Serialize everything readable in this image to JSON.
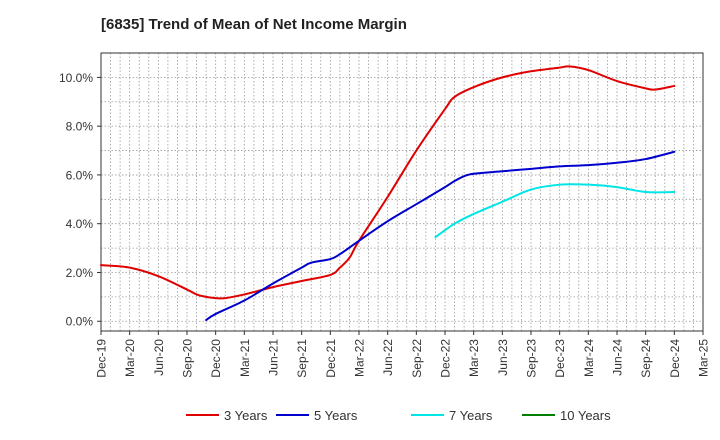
{
  "chart_data": {
    "type": "line",
    "title": "[6835]  Trend of Mean of Net Income Margin",
    "xlabel": "",
    "ylabel": "",
    "x_ticks": [
      "Dec-19",
      "Mar-20",
      "Jun-20",
      "Sep-20",
      "Dec-20",
      "Mar-21",
      "Jun-21",
      "Sep-21",
      "Dec-21",
      "Mar-22",
      "Jun-22",
      "Sep-22",
      "Dec-22",
      "Mar-23",
      "Jun-23",
      "Sep-23",
      "Dec-23",
      "Mar-24",
      "Jun-24",
      "Sep-24",
      "Dec-24",
      "Mar-25"
    ],
    "y_ticks": [
      "0.0%",
      "2.0%",
      "4.0%",
      "6.0%",
      "8.0%",
      "10.0%"
    ],
    "ylim": [
      -0.4,
      11.0
    ],
    "grid": true,
    "legend_position": "bottom",
    "series": [
      {
        "name": "3 Years",
        "color": "#e00000",
        "x": [
          "Dec-19",
          "Mar-20",
          "Jun-20",
          "Sep-20",
          "Oct-20",
          "Nov-20",
          "Dec-20",
          "Jan-21",
          "Mar-21",
          "Jun-21",
          "Sep-21",
          "Dec-21",
          "Jan-22",
          "Feb-22",
          "Mar-22",
          "Jun-22",
          "Sep-22",
          "Dec-22",
          "Jan-23",
          "Mar-23",
          "Jun-23",
          "Sep-23",
          "Dec-23",
          "Jan-24",
          "Mar-24",
          "Jun-24",
          "Sep-24",
          "Oct-24",
          "Dec-24"
        ],
        "values": [
          2.3,
          2.2,
          1.85,
          1.3,
          1.1,
          1.0,
          0.95,
          0.95,
          1.1,
          1.4,
          1.65,
          1.9,
          2.2,
          2.6,
          3.3,
          5.1,
          7.0,
          8.7,
          9.2,
          9.6,
          10.0,
          10.25,
          10.4,
          10.45,
          10.3,
          9.85,
          9.55,
          9.5,
          9.65
        ]
      },
      {
        "name": "5 Years",
        "color": "#0000cc",
        "x": [
          "Nov-20",
          "Dec-20",
          "Mar-21",
          "Jun-21",
          "Sep-21",
          "Oct-21",
          "Dec-21",
          "Jan-22",
          "Mar-22",
          "Jun-22",
          "Sep-22",
          "Dec-22",
          "Jan-23",
          "Feb-23",
          "Mar-23",
          "Jun-23",
          "Sep-23",
          "Dec-23",
          "Mar-24",
          "Jun-24",
          "Sep-24",
          "Dec-24"
        ],
        "values": [
          0.05,
          0.3,
          0.85,
          1.55,
          2.2,
          2.4,
          2.55,
          2.75,
          3.3,
          4.1,
          4.8,
          5.5,
          5.75,
          5.95,
          6.05,
          6.15,
          6.25,
          6.35,
          6.4,
          6.5,
          6.65,
          6.95
        ]
      },
      {
        "name": "7 Years",
        "color": "#00e5e5",
        "x": [
          "Nov-22",
          "Jan-23",
          "Mar-23",
          "Jun-23",
          "Sep-23",
          "Dec-23",
          "Mar-24",
          "Jun-24",
          "Sep-24",
          "Dec-24"
        ],
        "values": [
          3.45,
          4.0,
          4.4,
          4.9,
          5.4,
          5.6,
          5.6,
          5.5,
          5.3,
          5.3
        ]
      },
      {
        "name": "10 Years",
        "color": "#008000",
        "x": [],
        "values": []
      }
    ]
  }
}
